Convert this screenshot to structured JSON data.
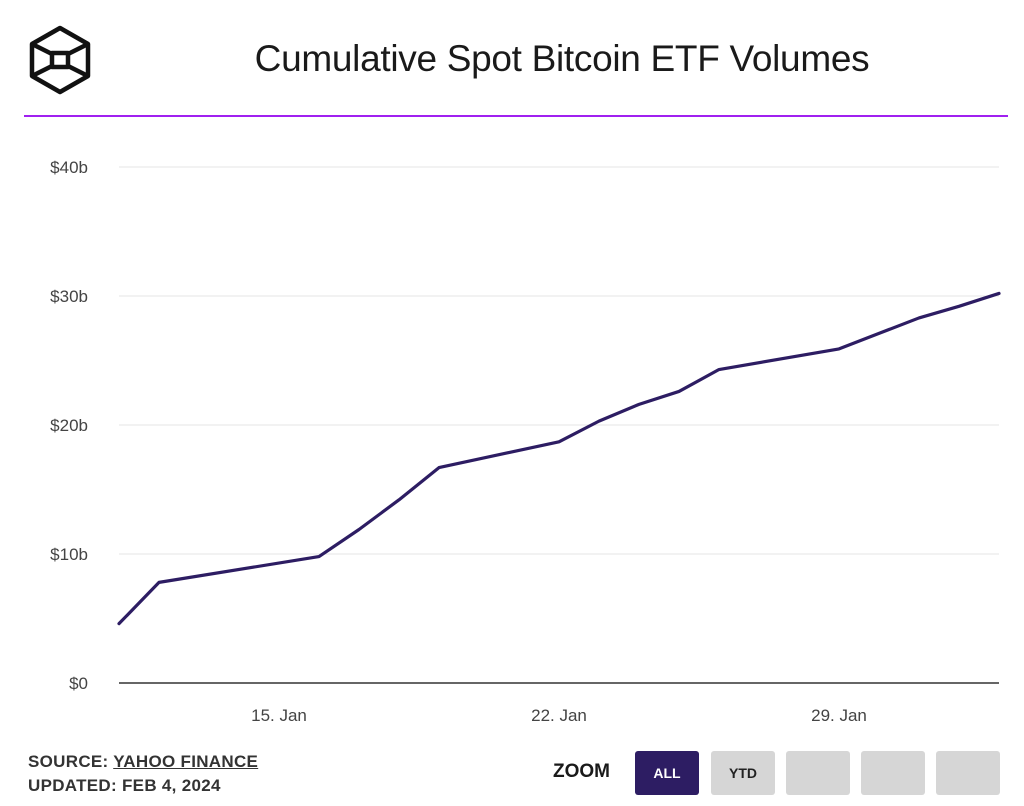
{
  "header": {
    "title": "Cumulative Spot Bitcoin ETF Volumes",
    "logo_icon": "hexagon-cube-logo"
  },
  "colors": {
    "accent_rule": "#a020f0",
    "line": "#2d1d63",
    "button_active": "#2d1d63",
    "button_inactive": "#d6d6d6"
  },
  "chart_data": {
    "type": "line",
    "title": "Cumulative Spot Bitcoin ETF Volumes",
    "xlabel": "",
    "ylabel": "",
    "ylim": [
      0,
      40
    ],
    "yticks": [
      0,
      10,
      20,
      30,
      40
    ],
    "ytick_labels": [
      "$0",
      "$10b",
      "$20b",
      "$30b",
      "$40b"
    ],
    "x_start_day": 11,
    "x_end_day": 33,
    "xticks": [
      15,
      22,
      29
    ],
    "xtick_labels": [
      "15. Jan",
      "22. Jan",
      "29. Jan"
    ],
    "grid": true,
    "series": [
      {
        "name": "Cumulative Spot Bitcoin ETF Volume ($b)",
        "x": [
          "2024-01-11",
          "2024-01-12",
          "2024-01-16",
          "2024-01-17",
          "2024-01-18",
          "2024-01-19",
          "2024-01-22",
          "2024-01-23",
          "2024-01-24",
          "2024-01-25",
          "2024-01-26",
          "2024-01-29",
          "2024-01-30",
          "2024-01-31",
          "2024-02-01",
          "2024-02-02"
        ],
        "x_day": [
          11,
          12,
          16,
          17,
          18,
          19,
          22,
          23,
          24,
          25,
          26,
          29,
          30,
          31,
          32,
          33
        ],
        "values": [
          4.6,
          7.8,
          9.8,
          11.9,
          14.2,
          16.7,
          18.7,
          20.3,
          21.6,
          22.6,
          24.3,
          25.9,
          27.1,
          28.3,
          29.2,
          30.2
        ]
      }
    ]
  },
  "footer": {
    "source_prefix": "SOURCE: ",
    "source_link": "YAHOO FINANCE",
    "updated": "UPDATED: FEB 4, 2024"
  },
  "zoom": {
    "label": "ZOOM",
    "buttons": [
      {
        "label": "ALL",
        "active": true
      },
      {
        "label": "YTD",
        "active": false
      },
      {
        "label": "",
        "active": false
      },
      {
        "label": "",
        "active": false
      },
      {
        "label": "",
        "active": false
      }
    ]
  }
}
